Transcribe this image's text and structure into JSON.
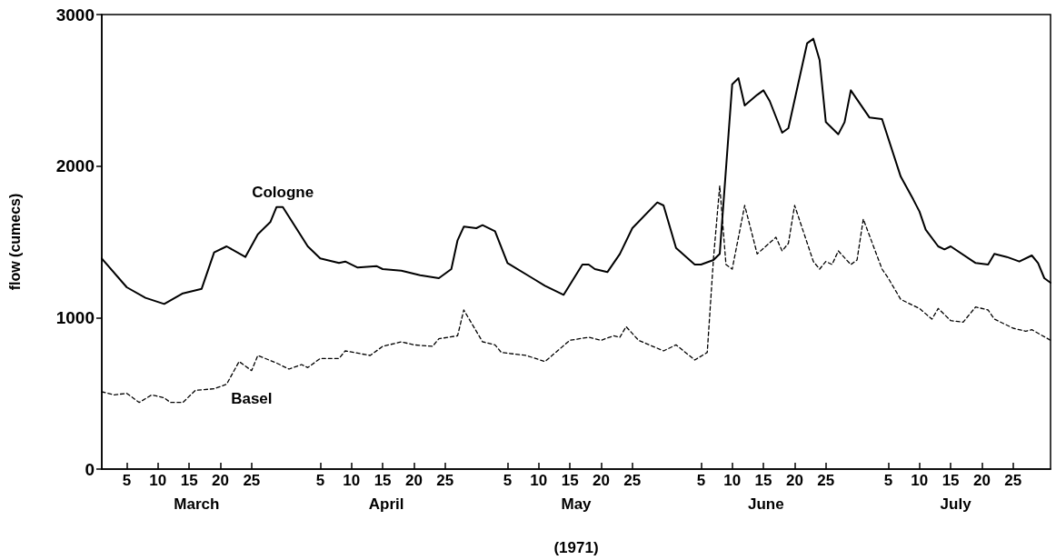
{
  "chart_data": {
    "type": "line",
    "xlabel": "(1971)",
    "ylabel": "flow (cumecs)",
    "xlim": [
      "1971-03-01",
      "1971-07-31"
    ],
    "xticks": [
      {
        "value": "1971-03-05",
        "label": "5"
      },
      {
        "value": "1971-03-10",
        "label": "10"
      },
      {
        "value": "1971-03-15",
        "label": "15"
      },
      {
        "value": "1971-03-20",
        "label": "20"
      },
      {
        "value": "1971-03-25",
        "label": "25"
      },
      {
        "value": "1971-04-05",
        "label": "5"
      },
      {
        "value": "1971-04-10",
        "label": "10"
      },
      {
        "value": "1971-04-15",
        "label": "15"
      },
      {
        "value": "1971-04-20",
        "label": "20"
      },
      {
        "value": "1971-04-25",
        "label": "25"
      },
      {
        "value": "1971-05-05",
        "label": "5"
      },
      {
        "value": "1971-05-10",
        "label": "10"
      },
      {
        "value": "1971-05-15",
        "label": "15"
      },
      {
        "value": "1971-05-20",
        "label": "20"
      },
      {
        "value": "1971-05-25",
        "label": "25"
      },
      {
        "value": "1971-06-05",
        "label": "5"
      },
      {
        "value": "1971-06-10",
        "label": "10"
      },
      {
        "value": "1971-06-15",
        "label": "15"
      },
      {
        "value": "1971-06-20",
        "label": "20"
      },
      {
        "value": "1971-06-25",
        "label": "25"
      },
      {
        "value": "1971-07-05",
        "label": "5"
      },
      {
        "value": "1971-07-10",
        "label": "10"
      },
      {
        "value": "1971-07-15",
        "label": "15"
      },
      {
        "value": "1971-07-20",
        "label": "20"
      },
      {
        "value": "1971-07-25",
        "label": "25"
      }
    ],
    "ylim": [
      0,
      3000
    ],
    "yticks": [
      0,
      1000,
      2000,
      3000
    ],
    "grid": false,
    "legend": false,
    "marker": "none",
    "annotations": [
      "March",
      "April",
      "May",
      "June",
      "July"
    ],
    "series": [
      {
        "name": "Cologne",
        "color": "#000000",
        "line_style": "solid",
        "x": [
          "1971-03-01",
          "1971-03-05",
          "1971-03-08",
          "1971-03-11",
          "1971-03-14",
          "1971-03-17",
          "1971-03-19",
          "1971-03-21",
          "1971-03-24",
          "1971-03-26",
          "1971-03-28",
          "1971-03-29",
          "1971-03-30",
          "1971-04-03",
          "1971-04-05",
          "1971-04-08",
          "1971-04-09",
          "1971-04-11",
          "1971-04-14",
          "1971-04-15",
          "1971-04-18",
          "1971-04-21",
          "1971-04-24",
          "1971-04-26",
          "1971-04-27",
          "1971-04-28",
          "1971-04-30",
          "1971-05-01",
          "1971-05-03",
          "1971-05-05",
          "1971-05-09",
          "1971-05-11",
          "1971-05-14",
          "1971-05-17",
          "1971-05-18",
          "1971-05-19",
          "1971-05-21",
          "1971-05-23",
          "1971-05-25",
          "1971-05-29",
          "1971-05-30",
          "1971-06-01",
          "1971-06-04",
          "1971-06-05",
          "1971-06-07",
          "1971-06-08",
          "1971-06-10",
          "1971-06-11",
          "1971-06-12",
          "1971-06-14",
          "1971-06-15",
          "1971-06-16",
          "1971-06-18",
          "1971-06-19",
          "1971-06-22",
          "1971-06-23",
          "1971-06-24",
          "1971-06-25",
          "1971-06-27",
          "1971-06-28",
          "1971-06-29",
          "1971-07-02",
          "1971-07-04",
          "1971-07-07",
          "1971-07-09",
          "1971-07-10",
          "1971-07-11",
          "1971-07-13",
          "1971-07-14",
          "1971-07-15",
          "1971-07-19",
          "1971-07-21",
          "1971-07-22",
          "1971-07-24",
          "1971-07-26",
          "1971-07-28",
          "1971-07-29",
          "1971-07-30",
          "1971-07-31"
        ],
        "values": [
          1390,
          1200,
          1130,
          1090,
          1160,
          1190,
          1430,
          1470,
          1400,
          1550,
          1630,
          1730,
          1730,
          1470,
          1390,
          1360,
          1370,
          1330,
          1340,
          1320,
          1310,
          1280,
          1260,
          1320,
          1510,
          1600,
          1590,
          1610,
          1570,
          1360,
          1260,
          1210,
          1150,
          1350,
          1350,
          1320,
          1300,
          1420,
          1590,
          1760,
          1740,
          1460,
          1350,
          1350,
          1380,
          1420,
          2540,
          2580,
          2400,
          2470,
          2500,
          2430,
          2220,
          2250,
          2810,
          2840,
          2700,
          2290,
          2210,
          2290,
          2500,
          2320,
          2310,
          1930,
          1780,
          1700,
          1580,
          1470,
          1450,
          1470,
          1360,
          1350,
          1420,
          1400,
          1370,
          1410,
          1360,
          1260,
          1230
        ]
      },
      {
        "name": "Basel",
        "color": "#000000",
        "line_style": "dashed",
        "x": [
          "1971-03-01",
          "1971-03-03",
          "1971-03-05",
          "1971-03-07",
          "1971-03-09",
          "1971-03-11",
          "1971-03-12",
          "1971-03-14",
          "1971-03-16",
          "1971-03-19",
          "1971-03-21",
          "1971-03-23",
          "1971-03-25",
          "1971-03-26",
          "1971-03-29",
          "1971-03-31",
          "1971-04-02",
          "1971-04-03",
          "1971-04-05",
          "1971-04-08",
          "1971-04-09",
          "1971-04-13",
          "1971-04-15",
          "1971-04-18",
          "1971-04-20",
          "1971-04-23",
          "1971-04-24",
          "1971-04-27",
          "1971-04-28",
          "1971-05-01",
          "1971-05-03",
          "1971-05-04",
          "1971-05-08",
          "1971-05-11",
          "1971-05-15",
          "1971-05-18",
          "1971-05-20",
          "1971-05-22",
          "1971-05-23",
          "1971-05-24",
          "1971-05-26",
          "1971-05-30",
          "1971-06-01",
          "1971-06-04",
          "1971-06-06",
          "1971-06-07",
          "1971-06-08",
          "1971-06-09",
          "1971-06-10",
          "1971-06-12",
          "1971-06-14",
          "1971-06-17",
          "1971-06-18",
          "1971-06-19",
          "1971-06-20",
          "1971-06-23",
          "1971-06-24",
          "1971-06-25",
          "1971-06-26",
          "1971-06-27",
          "1971-06-29",
          "1971-06-30",
          "1971-07-01",
          "1971-07-04",
          "1971-07-05",
          "1971-07-07",
          "1971-07-10",
          "1971-07-12",
          "1971-07-13",
          "1971-07-15",
          "1971-07-17",
          "1971-07-19",
          "1971-07-21",
          "1971-07-22",
          "1971-07-25",
          "1971-07-27",
          "1971-07-28",
          "1971-07-31"
        ],
        "values": [
          510,
          490,
          500,
          440,
          490,
          470,
          440,
          440,
          520,
          530,
          560,
          710,
          650,
          750,
          700,
          660,
          690,
          670,
          730,
          730,
          780,
          750,
          810,
          840,
          820,
          810,
          860,
          880,
          1050,
          840,
          820,
          770,
          750,
          710,
          850,
          870,
          850,
          880,
          870,
          940,
          850,
          780,
          820,
          720,
          770,
          1390,
          1870,
          1350,
          1320,
          1740,
          1420,
          1530,
          1440,
          1490,
          1740,
          1370,
          1320,
          1370,
          1350,
          1440,
          1350,
          1380,
          1650,
          1320,
          1260,
          1120,
          1060,
          990,
          1060,
          980,
          970,
          1070,
          1050,
          990,
          930,
          910,
          920,
          850
        ]
      }
    ]
  }
}
